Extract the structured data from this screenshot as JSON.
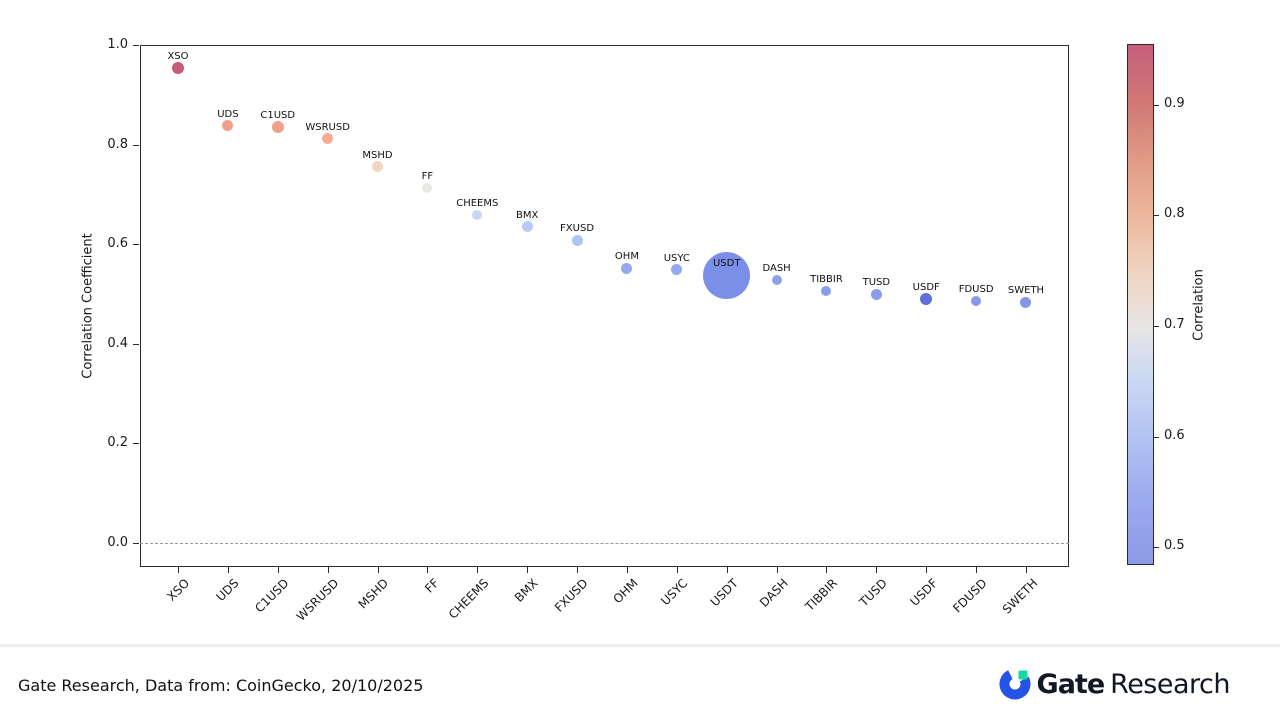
{
  "chart_data": {
    "type": "scatter",
    "title": "",
    "xlabel": "",
    "ylabel": "Correlation Coefficient",
    "ylim": [
      -0.05,
      1.0
    ],
    "grid": false,
    "zero_line": 0.0,
    "yticks": [
      {
        "v": 1.0,
        "t": "1.0"
      },
      {
        "v": 0.8,
        "t": "0.8"
      },
      {
        "v": 0.6,
        "t": "0.6"
      },
      {
        "v": 0.4,
        "t": "0.4"
      },
      {
        "v": 0.2,
        "t": "0.2"
      },
      {
        "v": 0.0,
        "t": "0.0"
      }
    ],
    "points": [
      {
        "label": "XSO",
        "value": 0.954,
        "r": 6,
        "color": "#c75c76"
      },
      {
        "label": "UDS",
        "value": 0.838,
        "r": 5.5,
        "color": "#f0a18c"
      },
      {
        "label": "C1USD",
        "value": 0.835,
        "r": 6,
        "color": "#efa08b"
      },
      {
        "label": "WSRUSD",
        "value": 0.812,
        "r": 5.5,
        "color": "#f3ab94"
      },
      {
        "label": "MSHD",
        "value": 0.756,
        "r": 5.5,
        "color": "#f4d5c1"
      },
      {
        "label": "FF",
        "value": 0.713,
        "r": 5,
        "color": "#e9e7e4"
      },
      {
        "label": "CHEEMS",
        "value": 0.659,
        "r": 5,
        "color": "#c6d6f4"
      },
      {
        "label": "BMX",
        "value": 0.635,
        "r": 5.5,
        "color": "#b7cbf4"
      },
      {
        "label": "FXUSD",
        "value": 0.608,
        "r": 5.5,
        "color": "#aec4f3"
      },
      {
        "label": "OHM",
        "value": 0.552,
        "r": 5.5,
        "color": "#93a8ee"
      },
      {
        "label": "USYC",
        "value": 0.549,
        "r": 5.5,
        "color": "#94a9ee"
      },
      {
        "label": "USDT",
        "value": 0.538,
        "r": 23.5,
        "color": "#7c8fe8"
      },
      {
        "label": "DASH",
        "value": 0.529,
        "r": 5,
        "color": "#8da1ec"
      },
      {
        "label": "TIBBIR",
        "value": 0.506,
        "r": 5,
        "color": "#8a9eeb"
      },
      {
        "label": "TUSD",
        "value": 0.5,
        "r": 5.5,
        "color": "#8a9cea"
      },
      {
        "label": "USDF",
        "value": 0.49,
        "r": 6,
        "color": "#5f6fd6"
      },
      {
        "label": "FDUSD",
        "value": 0.485,
        "r": 5,
        "color": "#8a99e8"
      },
      {
        "label": "SWETH",
        "value": 0.483,
        "r": 5.5,
        "color": "#8597e6"
      }
    ],
    "colorbar": {
      "label": "Correlation",
      "vmin": 0.484,
      "vmax": 0.955,
      "ticks": [
        {
          "v": 0.9,
          "t": "0.9"
        },
        {
          "v": 0.8,
          "t": "0.8"
        },
        {
          "v": 0.7,
          "t": "0.7"
        },
        {
          "v": 0.6,
          "t": "0.6"
        },
        {
          "v": 0.5,
          "t": "0.5"
        }
      ],
      "gradient": [
        {
          "f": 0.0,
          "c": "#c55f7b"
        },
        {
          "f": 0.117,
          "c": "#d17976"
        },
        {
          "f": 0.22,
          "c": "#e09a85"
        },
        {
          "f": 0.33,
          "c": "#ecb89d"
        },
        {
          "f": 0.45,
          "c": "#efd7c5"
        },
        {
          "f": 0.545,
          "c": "#e7e4e4"
        },
        {
          "f": 0.63,
          "c": "#cedbf3"
        },
        {
          "f": 0.756,
          "c": "#b2c3f3"
        },
        {
          "f": 0.87,
          "c": "#9cabee"
        },
        {
          "f": 1.0,
          "c": "#8b9ae8"
        }
      ]
    }
  },
  "footer": {
    "source_text": "Gate Research, Data from: CoinGecko, 20/10/2025",
    "logo": {
      "brand": "Gate",
      "suffix": "Research",
      "blue": "#2354e6",
      "green": "#17d99d"
    }
  }
}
